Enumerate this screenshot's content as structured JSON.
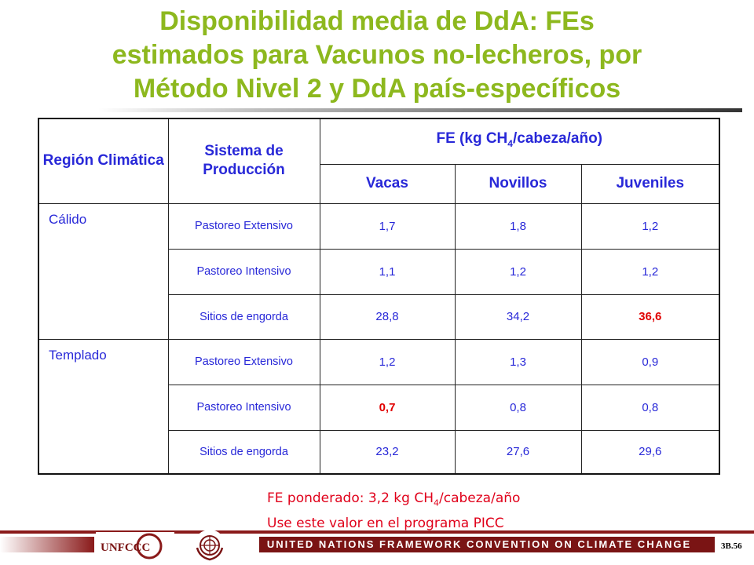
{
  "title": {
    "line1": "Disponibilidad media de DdA: FEs",
    "line2": "estimados para Vacunos no-lecheros, por",
    "line3": "Método Nivel 2 y DdA país-específicos"
  },
  "table": {
    "col_region": "Región Climática",
    "col_system": "Sistema de Producción",
    "col_fe_main": "FE (kg CH",
    "col_fe_sub": "4",
    "col_fe_tail": "/cabeza/año)",
    "sub_headers": [
      "Vacas",
      "Novillos",
      "Juveniles"
    ],
    "regions": [
      {
        "name": "Cálido",
        "rows": [
          {
            "system": "Pastoreo Extensivo",
            "vacas": "1,7",
            "novillos": "1,8",
            "juveniles": "1,2"
          },
          {
            "system": "Pastoreo Intensivo",
            "vacas": "1,1",
            "novillos": "1,2",
            "juveniles": "1,2"
          },
          {
            "system": "Sitios de engorda",
            "vacas": "28,8",
            "novillos": "34,2",
            "juveniles": "36,6"
          }
        ]
      },
      {
        "name": "Templado",
        "rows": [
          {
            "system": "Pastoreo Extensivo",
            "vacas": "1,2",
            "novillos": "1,3",
            "juveniles": "0,9"
          },
          {
            "system": "Pastoreo Intensivo",
            "vacas": "0,7",
            "novillos": "0,8",
            "juveniles": "0,8"
          },
          {
            "system": "Sitios de engorda",
            "vacas": "23,2",
            "novillos": "27,6",
            "juveniles": "29,6"
          }
        ]
      }
    ]
  },
  "note": {
    "line1_pre": "FE ponderado: 3,2 kg CH",
    "line1_sub": "4",
    "line1_post": "/cabeza/año",
    "line2": "Use este valor en el programa PICC"
  },
  "footer": {
    "banner": "UNITED NATIONS FRAMEWORK CONVENTION ON CLIMATE CHANGE",
    "logo_text": "UNFCCC",
    "slide_number": "3B.56"
  },
  "colors": {
    "title": "#8DB81E",
    "table_text": "#2828D8",
    "highlight": "#E00000",
    "banner": "#7A1414"
  }
}
